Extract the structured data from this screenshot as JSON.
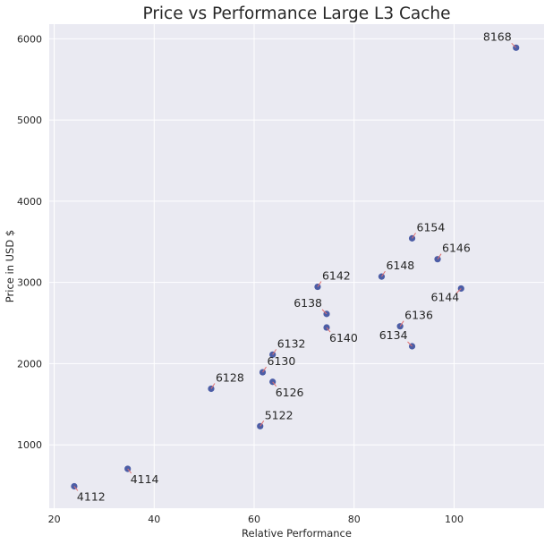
{
  "chart_data": {
    "type": "scatter",
    "title": "Price vs Performance Large L3 Cache",
    "xlabel": "Relative Performance",
    "ylabel": "Price in USD $",
    "xlim": [
      19,
      118
    ],
    "ylim": [
      220,
      6180
    ],
    "xticks": [
      20,
      40,
      60,
      80,
      100
    ],
    "yticks": [
      1000,
      2000,
      3000,
      4000,
      5000,
      6000
    ],
    "grid": true,
    "colors": {
      "background": "#eaeaf2",
      "grid": "#ffffff",
      "point": "#4c5da6",
      "leader": "#e07070"
    },
    "points": [
      {
        "label": "4112",
        "x": 24.0,
        "y": 490,
        "anchor": "below-right"
      },
      {
        "label": "4114",
        "x": 34.7,
        "y": 705,
        "anchor": "below-right"
      },
      {
        "label": "5122",
        "x": 61.2,
        "y": 1230,
        "anchor": "above-right"
      },
      {
        "label": "6126",
        "x": 63.7,
        "y": 1776,
        "anchor": "below-right"
      },
      {
        "label": "6128",
        "x": 51.4,
        "y": 1691,
        "anchor": "above-right"
      },
      {
        "label": "6130",
        "x": 61.7,
        "y": 1894,
        "anchor": "above-right"
      },
      {
        "label": "6132",
        "x": 63.7,
        "y": 2111,
        "anchor": "above-right"
      },
      {
        "label": "6134",
        "x": 91.6,
        "y": 2214,
        "anchor": "above-left"
      },
      {
        "label": "6136",
        "x": 89.2,
        "y": 2460,
        "anchor": "above-right"
      },
      {
        "label": "6138",
        "x": 74.5,
        "y": 2612,
        "anchor": "above-left"
      },
      {
        "label": "6140",
        "x": 74.5,
        "y": 2445,
        "anchor": "below-right"
      },
      {
        "label": "6142",
        "x": 72.7,
        "y": 2946,
        "anchor": "above-right"
      },
      {
        "label": "6144",
        "x": 101.4,
        "y": 2925,
        "anchor": "below-left"
      },
      {
        "label": "6146",
        "x": 96.7,
        "y": 3286,
        "anchor": "above-right"
      },
      {
        "label": "6148",
        "x": 85.5,
        "y": 3072,
        "anchor": "above-right"
      },
      {
        "label": "6154",
        "x": 91.6,
        "y": 3543,
        "anchor": "above-right"
      },
      {
        "label": "8168",
        "x": 112.4,
        "y": 5890,
        "anchor": "above-left"
      }
    ]
  }
}
